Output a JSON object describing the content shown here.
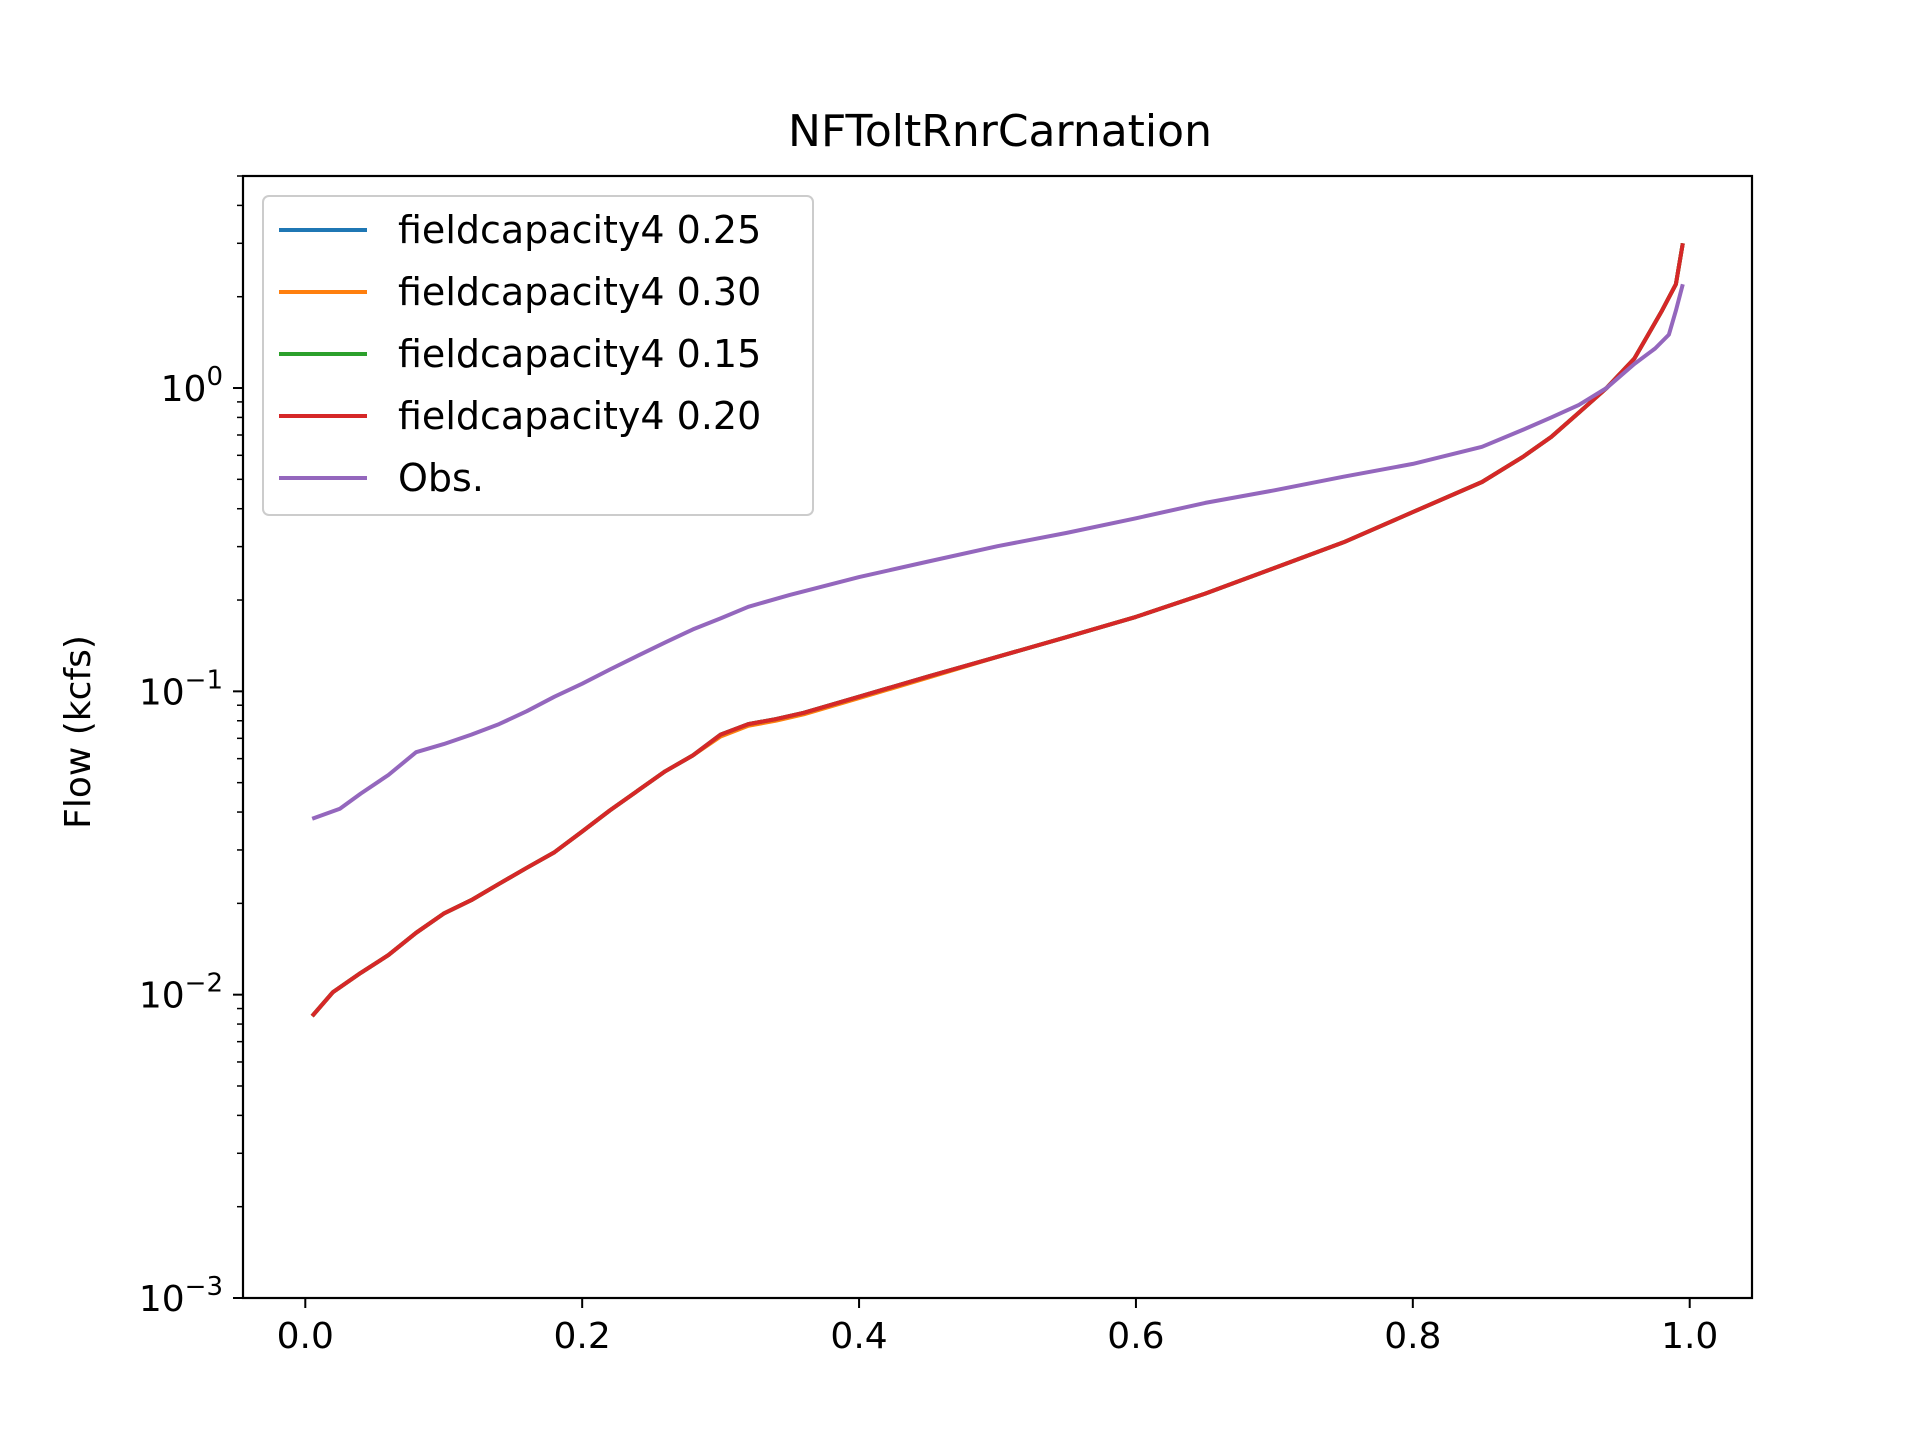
{
  "chart_data": {
    "type": "line",
    "title": "NFToltRnrCarnation",
    "xlabel": "",
    "ylabel": "Flow (kcfs)",
    "yscale": "log",
    "xlim": [
      -0.045,
      1.045
    ],
    "ylim": [
      0.001,
      5
    ],
    "grid": false,
    "legend_position": "top-left",
    "x_ticks": [
      {
        "value": 0.0,
        "label": "0.0"
      },
      {
        "value": 0.2,
        "label": "0.2"
      },
      {
        "value": 0.4,
        "label": "0.4"
      },
      {
        "value": 0.6,
        "label": "0.6"
      },
      {
        "value": 0.8,
        "label": "0.8"
      },
      {
        "value": 1.0,
        "label": "1.0"
      }
    ],
    "y_ticks": [
      {
        "value": 0.001,
        "base": "10",
        "exp": "−3"
      },
      {
        "value": 0.01,
        "base": "10",
        "exp": "−2"
      },
      {
        "value": 0.1,
        "base": "10",
        "exp": "−1"
      },
      {
        "value": 1,
        "base": "10",
        "exp": "0"
      }
    ],
    "series": [
      {
        "name": "fieldcapacity4 0.25",
        "color": "#1f77b4",
        "x": [
          0.005,
          0.02,
          0.04,
          0.06,
          0.08,
          0.1,
          0.12,
          0.14,
          0.16,
          0.18,
          0.2,
          0.22,
          0.24,
          0.26,
          0.28,
          0.3,
          0.32,
          0.34,
          0.36,
          0.4,
          0.45,
          0.5,
          0.55,
          0.6,
          0.65,
          0.7,
          0.75,
          0.8,
          0.85,
          0.88,
          0.9,
          0.92,
          0.94,
          0.96,
          0.97,
          0.98,
          0.99,
          0.995
        ],
        "y": [
          0.0085,
          0.0102,
          0.0118,
          0.0135,
          0.016,
          0.0185,
          0.0205,
          0.0232,
          0.0262,
          0.0295,
          0.0345,
          0.0405,
          0.047,
          0.0545,
          0.0615,
          0.072,
          0.078,
          0.081,
          0.085,
          0.096,
          0.112,
          0.13,
          0.151,
          0.176,
          0.21,
          0.255,
          0.31,
          0.39,
          0.49,
          0.595,
          0.69,
          0.83,
          1.0,
          1.25,
          1.5,
          1.8,
          2.2,
          3.0
        ]
      },
      {
        "name": "fieldcapacity4 0.30",
        "color": "#ff7f0e",
        "x": [
          0.005,
          0.02,
          0.04,
          0.06,
          0.08,
          0.1,
          0.12,
          0.14,
          0.16,
          0.18,
          0.2,
          0.22,
          0.24,
          0.26,
          0.28,
          0.3,
          0.32,
          0.34,
          0.36,
          0.4,
          0.45,
          0.5,
          0.55,
          0.6,
          0.65,
          0.7,
          0.75,
          0.8,
          0.85,
          0.88,
          0.9,
          0.92,
          0.94,
          0.96,
          0.97,
          0.98,
          0.99,
          0.995
        ],
        "y": [
          0.0085,
          0.0102,
          0.0118,
          0.0135,
          0.016,
          0.0185,
          0.0205,
          0.0232,
          0.0262,
          0.0295,
          0.0345,
          0.0405,
          0.047,
          0.0545,
          0.0615,
          0.071,
          0.077,
          0.08,
          0.084,
          0.095,
          0.111,
          0.13,
          0.151,
          0.176,
          0.21,
          0.255,
          0.31,
          0.39,
          0.49,
          0.595,
          0.69,
          0.83,
          1.0,
          1.25,
          1.5,
          1.8,
          2.2,
          3.0
        ]
      },
      {
        "name": "fieldcapacity4 0.15",
        "color": "#2ca02c",
        "x": [
          0.005,
          0.02,
          0.04,
          0.06,
          0.08,
          0.1,
          0.12,
          0.14,
          0.16,
          0.18,
          0.2,
          0.22,
          0.24,
          0.26,
          0.28,
          0.3,
          0.32,
          0.34,
          0.36,
          0.4,
          0.45,
          0.5,
          0.55,
          0.6,
          0.65,
          0.7,
          0.75,
          0.8,
          0.85,
          0.88,
          0.9,
          0.92,
          0.94,
          0.96,
          0.97,
          0.98,
          0.99,
          0.995
        ],
        "y": [
          0.0085,
          0.0102,
          0.0118,
          0.0135,
          0.016,
          0.0185,
          0.0205,
          0.0232,
          0.0262,
          0.0295,
          0.0345,
          0.0405,
          0.047,
          0.0545,
          0.0615,
          0.072,
          0.078,
          0.081,
          0.085,
          0.096,
          0.112,
          0.13,
          0.151,
          0.176,
          0.21,
          0.255,
          0.31,
          0.39,
          0.49,
          0.595,
          0.69,
          0.83,
          1.0,
          1.25,
          1.5,
          1.8,
          2.2,
          3.0
        ]
      },
      {
        "name": "fieldcapacity4 0.20",
        "color": "#d62728",
        "x": [
          0.005,
          0.02,
          0.04,
          0.06,
          0.08,
          0.1,
          0.12,
          0.14,
          0.16,
          0.18,
          0.2,
          0.22,
          0.24,
          0.26,
          0.28,
          0.3,
          0.32,
          0.34,
          0.36,
          0.4,
          0.45,
          0.5,
          0.55,
          0.6,
          0.65,
          0.7,
          0.75,
          0.8,
          0.85,
          0.88,
          0.9,
          0.92,
          0.94,
          0.96,
          0.97,
          0.98,
          0.99,
          0.995
        ],
        "y": [
          0.0085,
          0.0102,
          0.0118,
          0.0135,
          0.016,
          0.0185,
          0.0205,
          0.0232,
          0.0262,
          0.0295,
          0.0345,
          0.0405,
          0.047,
          0.0545,
          0.0615,
          0.072,
          0.078,
          0.081,
          0.085,
          0.096,
          0.112,
          0.13,
          0.151,
          0.176,
          0.21,
          0.255,
          0.31,
          0.39,
          0.49,
          0.595,
          0.69,
          0.83,
          1.0,
          1.25,
          1.5,
          1.8,
          2.2,
          3.0
        ]
      },
      {
        "name": "Obs.",
        "color": "#9467bd",
        "x": [
          0.005,
          0.025,
          0.04,
          0.06,
          0.08,
          0.1,
          0.12,
          0.14,
          0.16,
          0.18,
          0.2,
          0.22,
          0.24,
          0.26,
          0.28,
          0.3,
          0.32,
          0.35,
          0.4,
          0.45,
          0.5,
          0.55,
          0.6,
          0.65,
          0.7,
          0.75,
          0.8,
          0.85,
          0.88,
          0.9,
          0.92,
          0.94,
          0.96,
          0.975,
          0.985,
          0.99,
          0.995
        ],
        "y": [
          0.038,
          0.041,
          0.046,
          0.053,
          0.063,
          0.067,
          0.072,
          0.078,
          0.086,
          0.096,
          0.106,
          0.118,
          0.131,
          0.145,
          0.16,
          0.174,
          0.19,
          0.208,
          0.238,
          0.268,
          0.301,
          0.333,
          0.372,
          0.418,
          0.46,
          0.51,
          0.562,
          0.64,
          0.73,
          0.8,
          0.88,
          1.0,
          1.2,
          1.35,
          1.5,
          1.8,
          2.2
        ]
      }
    ]
  }
}
